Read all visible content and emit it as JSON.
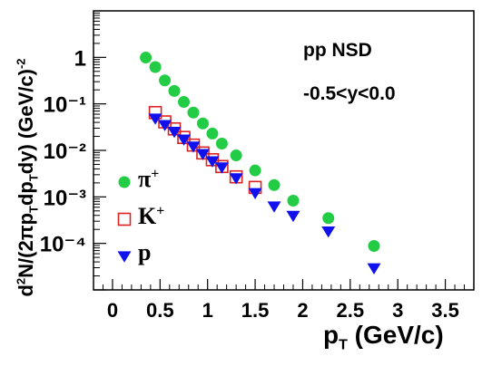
{
  "chart_data": {
    "type": "scatter",
    "title": "",
    "annotations": [
      "pp NSD",
      "-0.5<y<0.0"
    ],
    "xlabel": "p_T (GeV/c)",
    "ylabel": "d²N/(2πp_Tdp_Tdy) (GeV/c)⁻²",
    "xlim": [
      -0.2,
      3.8
    ],
    "ylim": [
      1e-05,
      10
    ],
    "yscale": "log",
    "x_ticks": [
      0,
      0.5,
      1,
      1.5,
      2,
      2.5,
      3,
      3.5
    ],
    "x_tick_labels": [
      "0",
      "0.5",
      "1",
      "1.5",
      "2",
      "2.5",
      "3",
      "3.5"
    ],
    "y_ticks": [
      1,
      0.1,
      0.01,
      0.001,
      0.0001
    ],
    "y_tick_labels": [
      "1",
      "10⁻¹",
      "10⁻²",
      "10⁻³",
      "10⁻⁴"
    ],
    "grid": false,
    "legend_position": "left-lower",
    "series": [
      {
        "name": "π⁺",
        "marker": "filled-circle",
        "color": "#22cc44",
        "x": [
          0.35,
          0.45,
          0.55,
          0.65,
          0.75,
          0.85,
          0.95,
          1.05,
          1.15,
          1.3,
          1.5,
          1.7,
          1.9,
          2.27,
          2.75
        ],
        "y": [
          0.99,
          0.62,
          0.32,
          0.19,
          0.11,
          0.065,
          0.038,
          0.023,
          0.014,
          0.0078,
          0.0037,
          0.0018,
          0.00083,
          0.00035,
          8.8e-05
        ]
      },
      {
        "name": "K⁺",
        "marker": "open-square",
        "color": "#dd2222",
        "x": [
          0.45,
          0.55,
          0.65,
          0.75,
          0.85,
          0.95,
          1.05,
          1.15,
          1.3,
          1.5
        ],
        "y": [
          0.065,
          0.041,
          0.029,
          0.019,
          0.013,
          0.0088,
          0.0063,
          0.0045,
          0.0027,
          0.0016
        ]
      },
      {
        "name": "p",
        "marker": "filled-triangle-down",
        "color": "#1111ee",
        "x": [
          0.45,
          0.55,
          0.65,
          0.75,
          0.85,
          0.95,
          1.05,
          1.15,
          1.3,
          1.5,
          1.7,
          1.9,
          2.27,
          2.75
        ],
        "y": [
          0.048,
          0.035,
          0.025,
          0.017,
          0.012,
          0.0083,
          0.0058,
          0.0043,
          0.0025,
          0.0012,
          0.00062,
          0.00039,
          0.00018,
          2.9e-05
        ]
      }
    ]
  }
}
